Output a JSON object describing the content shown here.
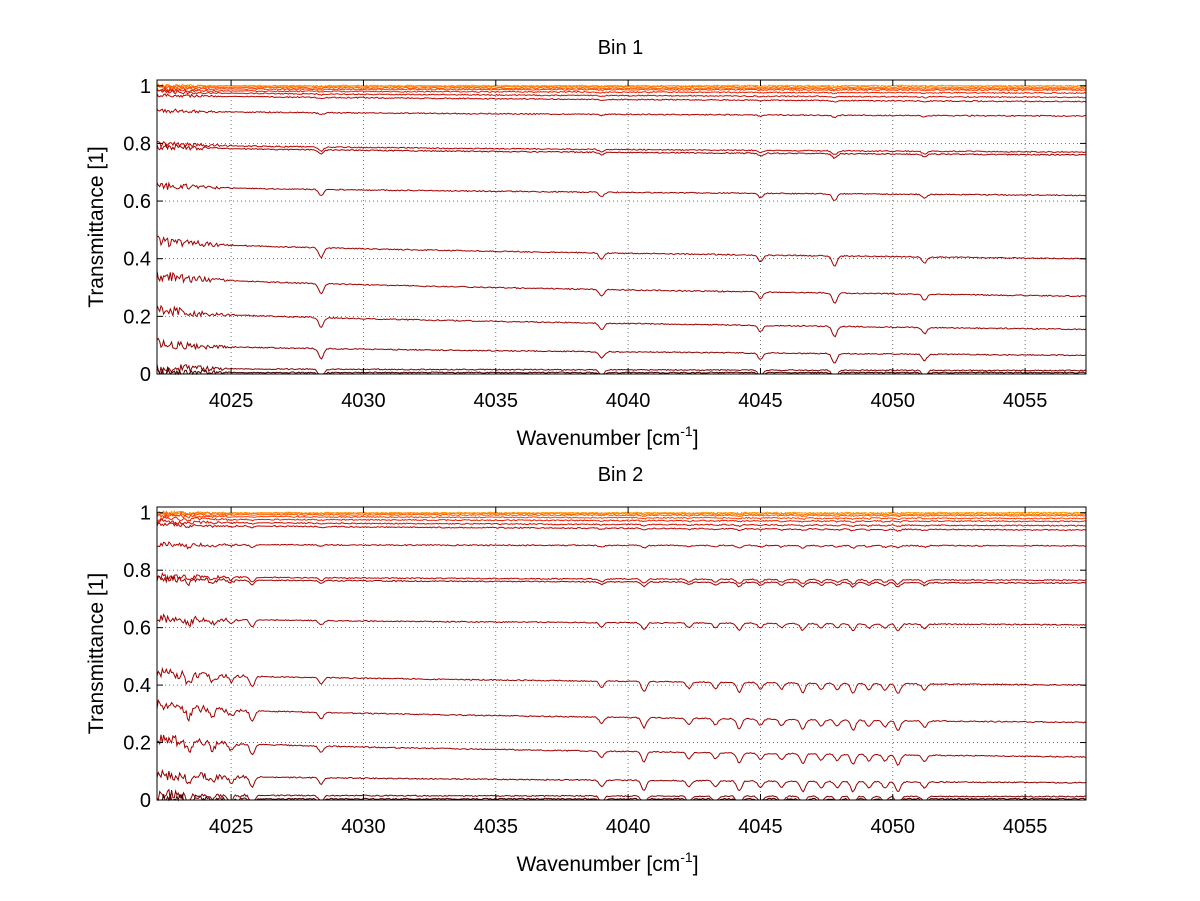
{
  "chart_data": [
    {
      "type": "line",
      "title": "Bin 1",
      "xlabel": "Wavenumber [cm",
      "xlabel_sup": "-1",
      "xlabel_end": "]",
      "ylabel": "Transmittance [1]",
      "xlim": [
        4022.2,
        4057.3
      ],
      "ylim": [
        0,
        1.02
      ],
      "xticks": [
        "4025",
        "4030",
        "4035",
        "4040",
        "4045",
        "4050",
        "4055"
      ],
      "yticks": [
        "0",
        "0.2",
        "0.4",
        "0.6",
        "0.8",
        "1"
      ],
      "grid": true,
      "absorption_lines": [
        4028.4,
        4039.0,
        4045.0,
        4047.8,
        4051.2
      ],
      "noise_region": [
        4022.2,
        4025.5
      ],
      "series": [
        {
          "start": 1.0,
          "end": 1.0,
          "color": "#ff9a00"
        },
        {
          "start": 1.0,
          "end": 0.995,
          "color": "#ff7a00"
        },
        {
          "start": 0.995,
          "end": 0.99,
          "color": "#ff5a00"
        },
        {
          "start": 0.99,
          "end": 0.985,
          "color": "#ff3a00"
        },
        {
          "start": 0.985,
          "end": 0.975,
          "color": "#e82000"
        },
        {
          "start": 0.98,
          "end": 0.96,
          "color": "#d01000"
        },
        {
          "start": 0.97,
          "end": 0.945,
          "color": "#c00000"
        },
        {
          "start": 0.915,
          "end": 0.895,
          "color": "#b00000"
        },
        {
          "start": 0.8,
          "end": 0.77,
          "color": "#c00000"
        },
        {
          "start": 0.79,
          "end": 0.76,
          "color": "#a00000"
        },
        {
          "start": 0.655,
          "end": 0.62,
          "color": "#a00000"
        },
        {
          "start": 0.465,
          "end": 0.4,
          "color": "#a00000"
        },
        {
          "start": 0.345,
          "end": 0.27,
          "color": "#a00000"
        },
        {
          "start": 0.225,
          "end": 0.155,
          "color": "#a00000"
        },
        {
          "start": 0.105,
          "end": 0.065,
          "color": "#900000"
        },
        {
          "start": 0.02,
          "end": 0.012,
          "color": "#800000"
        },
        {
          "start": 0.005,
          "end": 0.005,
          "color": "#400000"
        }
      ]
    },
    {
      "type": "line",
      "title": "Bin 2",
      "xlabel": "Wavenumber [cm",
      "xlabel_sup": "-1",
      "xlabel_end": "]",
      "ylabel": "Transmittance [1]",
      "xlim": [
        4022.2,
        4057.3
      ],
      "ylim": [
        0,
        1.02
      ],
      "xticks": [
        "4025",
        "4030",
        "4035",
        "4040",
        "4045",
        "4050",
        "4055"
      ],
      "yticks": [
        "0",
        "0.2",
        "0.4",
        "0.6",
        "0.8",
        "1"
      ],
      "grid": true,
      "absorption_lines": [
        4023.4,
        4024.3,
        4025.0,
        4025.8,
        4028.4,
        4039.0,
        4040.6,
        4042.3,
        4043.3,
        4044.2,
        4045.0,
        4045.8,
        4046.6,
        4047.3,
        4047.9,
        4048.5,
        4049.1,
        4049.7,
        4050.2,
        4051.2
      ],
      "noise_region": [
        4022.2,
        4026.5
      ],
      "series": [
        {
          "start": 1.0,
          "end": 1.0,
          "color": "#ff9a00"
        },
        {
          "start": 1.0,
          "end": 0.995,
          "color": "#ff7a00"
        },
        {
          "start": 0.995,
          "end": 0.99,
          "color": "#ff5a00"
        },
        {
          "start": 0.99,
          "end": 0.98,
          "color": "#ff3a00"
        },
        {
          "start": 0.98,
          "end": 0.97,
          "color": "#e82000"
        },
        {
          "start": 0.97,
          "end": 0.955,
          "color": "#d01000"
        },
        {
          "start": 0.96,
          "end": 0.94,
          "color": "#c00000"
        },
        {
          "start": 0.89,
          "end": 0.885,
          "color": "#b00000"
        },
        {
          "start": 0.78,
          "end": 0.765,
          "color": "#c00000"
        },
        {
          "start": 0.77,
          "end": 0.755,
          "color": "#a00000"
        },
        {
          "start": 0.635,
          "end": 0.61,
          "color": "#a00000"
        },
        {
          "start": 0.445,
          "end": 0.4,
          "color": "#a00000"
        },
        {
          "start": 0.33,
          "end": 0.27,
          "color": "#a00000"
        },
        {
          "start": 0.215,
          "end": 0.15,
          "color": "#a00000"
        },
        {
          "start": 0.09,
          "end": 0.06,
          "color": "#900000"
        },
        {
          "start": 0.018,
          "end": 0.012,
          "color": "#800000"
        },
        {
          "start": 0.004,
          "end": 0.004,
          "color": "#400000"
        }
      ]
    }
  ]
}
